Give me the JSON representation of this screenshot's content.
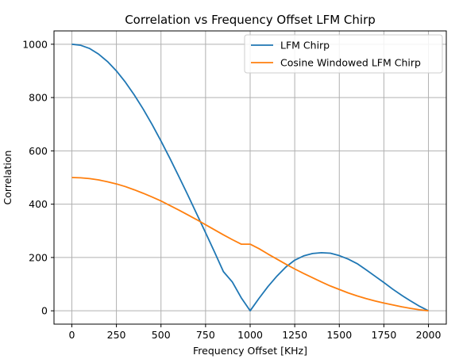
{
  "chart_data": {
    "type": "line",
    "title": "Correlation vs Frequency Offset LFM Chirp",
    "xlabel": "Frequency Offset [KHz]",
    "ylabel": "Correlation",
    "xlim": [
      -100,
      2100
    ],
    "ylim": [
      -50,
      1050
    ],
    "xticks": [
      0,
      250,
      500,
      750,
      1000,
      1250,
      1500,
      1750,
      2000
    ],
    "yticks": [
      0,
      200,
      400,
      600,
      800,
      1000
    ],
    "grid": true,
    "legend_position": "top-right",
    "series": [
      {
        "name": "LFM Chirp",
        "color": "#1f77b4",
        "x": [
          0,
          50,
          100,
          150,
          200,
          250,
          300,
          350,
          400,
          450,
          500,
          550,
          600,
          650,
          700,
          750,
          800,
          850,
          900,
          950,
          1000,
          1050,
          1100,
          1150,
          1200,
          1250,
          1300,
          1350,
          1400,
          1450,
          1500,
          1550,
          1600,
          1650,
          1700,
          1750,
          1800,
          1850,
          1900,
          1950,
          2000
        ],
        "y": [
          1000,
          996,
          984,
          963,
          935,
          900,
          858,
          810,
          757,
          699,
          637,
          572,
          504,
          435,
          364,
          293,
          221,
          147,
          108,
          49,
          0,
          47,
          91,
          130,
          164,
          190,
          206,
          215,
          218,
          216,
          207,
          194,
          177,
          154,
          130,
          106,
          81,
          58,
          37,
          17,
          0
        ]
      },
      {
        "name": "Cosine Windowed LFM Chirp",
        "color": "#ff7f0e",
        "x": [
          0,
          50,
          100,
          150,
          200,
          250,
          300,
          350,
          400,
          450,
          500,
          550,
          600,
          650,
          700,
          750,
          800,
          850,
          900,
          950,
          1000,
          1050,
          1100,
          1150,
          1200,
          1250,
          1300,
          1350,
          1400,
          1450,
          1500,
          1550,
          1600,
          1650,
          1700,
          1750,
          1800,
          1850,
          1900,
          1950,
          2000
        ],
        "y": [
          500,
          499,
          496,
          491,
          484,
          476,
          466,
          454,
          441,
          427,
          412,
          395,
          378,
          360,
          342,
          323,
          304,
          285,
          267,
          250,
          250,
          233,
          213,
          194,
          175,
          157,
          140,
          124,
          108,
          93,
          80,
          67,
          56,
          46,
          37,
          29,
          22,
          15,
          9,
          4,
          0
        ]
      }
    ]
  }
}
